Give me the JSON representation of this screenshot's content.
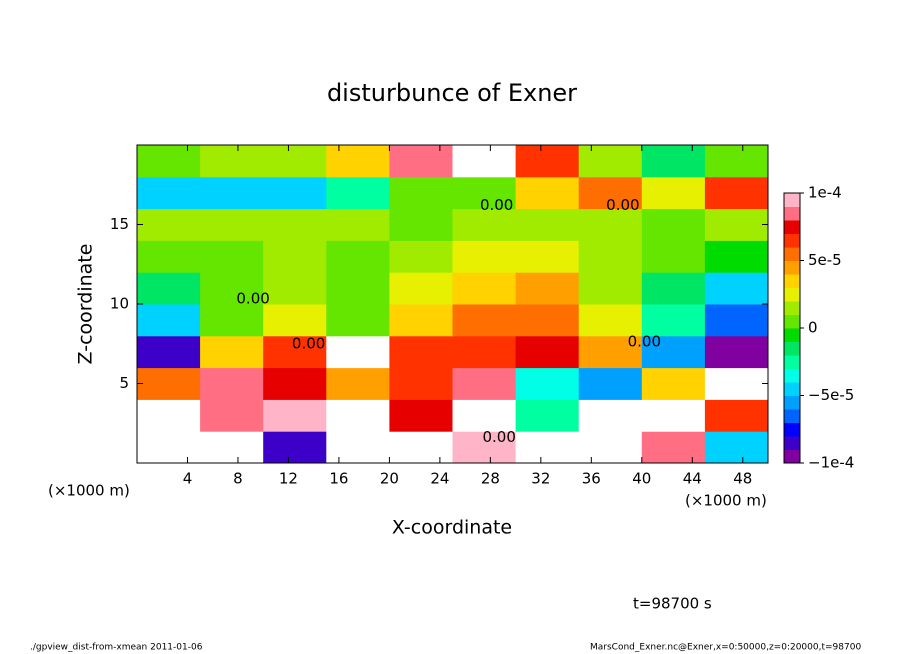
{
  "chart_data": {
    "type": "contour",
    "title": "disturbunce of Exner",
    "x_label": "X-coordinate",
    "y_label": "Z-coordinate",
    "x_units": "(×1000 m)",
    "y_units": "(×1000 m)",
    "time_label": "t=98700 s",
    "footer_left": "./gpview_dist-from-xmean  2011-01-06",
    "footer_right": "MarsCond_Exner.nc@Exner,x=0:50000,z=0:20000,t=98700",
    "xlim": [
      0,
      50
    ],
    "ylim": [
      0,
      20
    ],
    "xticks": [
      4,
      8,
      12,
      16,
      20,
      24,
      28,
      32,
      36,
      40,
      44,
      48
    ],
    "yticks": [
      5,
      10,
      15
    ],
    "clim": [
      -0.0001,
      0.0001
    ],
    "cticks": [
      {
        "value": -0.0001,
        "label": "−1e-4"
      },
      {
        "value": -5e-05,
        "label": "−5e-5"
      },
      0,
      {
        "value": 5e-05,
        "label": "5e-5"
      },
      {
        "value": 0.0001,
        "label": "1e-4"
      }
    ],
    "colormap": [
      "#8000a0",
      "#3c00c8",
      "#0000ff",
      "#0064ff",
      "#00a0ff",
      "#00d2ff",
      "#00ffe6",
      "#00ffa0",
      "#00e664",
      "#00dc00",
      "#64e600",
      "#a0eb00",
      "#e6f000",
      "#ffd200",
      "#ffa000",
      "#ff6e00",
      "#ff3200",
      "#e60000",
      "#ff6e82",
      "#ffb4c8"
    ],
    "over_color": "#ffffff",
    "contour_labels": [
      {
        "text": "0.00",
        "x": 28.5,
        "y": 16.2
      },
      {
        "text": "0.00",
        "x": 38.5,
        "y": 16.2
      },
      {
        "text": "0.00",
        "x": 9.2,
        "y": 10.3
      },
      {
        "text": "0.00",
        "x": 13.6,
        "y": 7.5
      },
      {
        "text": "0.00",
        "x": 40.2,
        "y": 7.6
      },
      {
        "text": "0.00",
        "x": 28.7,
        "y": 1.6
      }
    ],
    "z": [
      [
        0.00012,
        0.00012,
        -8e-05,
        0.00012,
        0.00012,
        9e-05,
        0.00012,
        0.00012,
        8e-05,
        -5e-05
      ],
      [
        0.00012,
        8e-05,
        9e-05,
        0.00012,
        7e-05,
        0.00012,
        -3e-05,
        0.00012,
        0.00012,
        6e-05
      ],
      [
        5e-05,
        8e-05,
        7e-05,
        4e-05,
        6e-05,
        8e-05,
        -4e-05,
        -6e-05,
        3e-05,
        0.00012
      ],
      [
        -8e-05,
        3e-05,
        6e-05,
        0.00012,
        6e-05,
        6e-05,
        7e-05,
        4e-05,
        -6e-05,
        -9e-05
      ],
      [
        -5e-05,
        0,
        2e-05,
        0,
        3e-05,
        5e-05,
        5e-05,
        2e-05,
        -3e-05,
        -7e-05
      ],
      [
        -2e-05,
        0,
        1e-05,
        0,
        2e-05,
        3e-05,
        4e-05,
        1e-05,
        -2e-05,
        -5e-05
      ],
      [
        0,
        0,
        1e-05,
        0,
        1e-05,
        2e-05,
        2e-05,
        1e-05,
        0,
        -1e-05
      ],
      [
        1e-05,
        1e-05,
        1e-05,
        1e-05,
        0,
        1e-05,
        1e-05,
        1e-05,
        0,
        1e-05
      ],
      [
        -5e-05,
        -5e-05,
        -5e-05,
        -3e-05,
        0,
        0,
        3e-05,
        5e-05,
        2e-05,
        6e-05
      ],
      [
        0,
        1e-05,
        1e-05,
        3e-05,
        8e-05,
        0.00012,
        6e-05,
        1e-05,
        -2e-05,
        0
      ]
    ]
  }
}
